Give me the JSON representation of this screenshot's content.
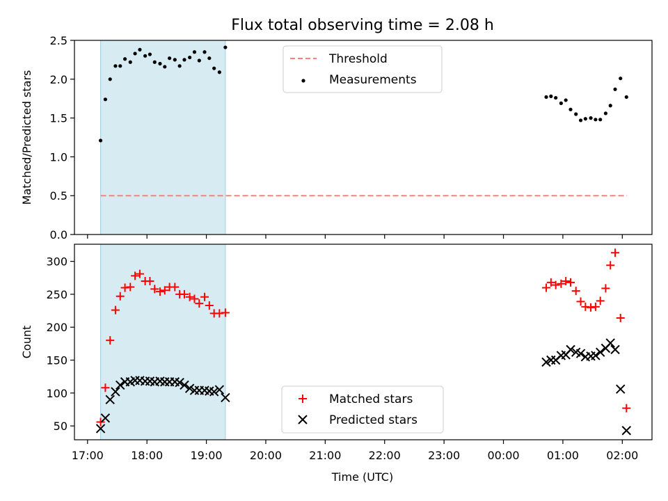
{
  "chart_data": {
    "title": "Flux total observing time = 2.08 h",
    "xlabel": "Time (UTC)",
    "x_tick_labels": [
      "17:00",
      "18:00",
      "19:00",
      "20:00",
      "21:00",
      "22:00",
      "23:00",
      "00:00",
      "01:00",
      "02:00"
    ],
    "x_tick_hours": [
      17,
      18,
      19,
      20,
      21,
      22,
      23,
      24,
      25,
      26
    ],
    "xlim_hours": [
      16.78,
      26.5
    ],
    "shaded_interval_hours": [
      17.22,
      19.32
    ],
    "shade_color": "#add8e6",
    "panels": [
      {
        "type": "scatter",
        "ylabel": "Matched/Predicted stars",
        "ylim": [
          0,
          2.5
        ],
        "y_tick_labels": [
          "0.0",
          "0.5",
          "1.0",
          "1.5",
          "2.0",
          "2.5"
        ],
        "y_tick_values": [
          0,
          0.5,
          1.0,
          1.5,
          2.0,
          2.5
        ],
        "legend": {
          "position": "upper center",
          "entries": [
            "Threshold",
            "Measurements"
          ]
        },
        "threshold": {
          "name": "Threshold",
          "y": 0.5,
          "x_range_hours": [
            17.22,
            26.08
          ],
          "color": "#ff7f7f",
          "style": "dashed"
        },
        "series": [
          {
            "name": "Measurements",
            "marker": "dot",
            "color": "#000000",
            "x_hours": [
              17.22,
              17.3,
              17.38,
              17.47,
              17.55,
              17.63,
              17.72,
              17.8,
              17.88,
              17.97,
              18.05,
              18.13,
              18.22,
              18.3,
              18.38,
              18.47,
              18.55,
              18.63,
              18.72,
              18.8,
              18.88,
              18.97,
              19.05,
              19.13,
              19.22,
              19.32,
              24.72,
              24.8,
              24.88,
              24.97,
              25.05,
              25.13,
              25.22,
              25.3,
              25.38,
              25.47,
              25.55,
              25.63,
              25.72,
              25.8,
              25.88,
              25.97,
              26.07
            ],
            "y": [
              1.21,
              1.74,
              2.0,
              2.17,
              2.17,
              2.26,
              2.22,
              2.33,
              2.38,
              2.3,
              2.32,
              2.22,
              2.2,
              2.16,
              2.27,
              2.25,
              2.17,
              2.25,
              2.28,
              2.35,
              2.24,
              2.35,
              2.27,
              2.14,
              2.09,
              2.41,
              1.77,
              1.78,
              1.76,
              1.69,
              1.73,
              1.61,
              1.55,
              1.47,
              1.49,
              1.5,
              1.48,
              1.48,
              1.56,
              1.66,
              1.87,
              2.01,
              1.77
            ]
          }
        ]
      },
      {
        "type": "scatter",
        "ylabel": "Count",
        "ylim": [
          29,
          326
        ],
        "y_tick_labels": [
          "50",
          "100",
          "150",
          "200",
          "250",
          "300"
        ],
        "y_tick_values": [
          50,
          100,
          150,
          200,
          250,
          300
        ],
        "legend": {
          "position": "lower center",
          "entries": [
            "Matched stars",
            "Predicted stars"
          ]
        },
        "series": [
          {
            "name": "Matched stars",
            "marker": "plus",
            "color": "#ff0000",
            "x_hours": [
              17.22,
              17.3,
              17.38,
              17.47,
              17.55,
              17.63,
              17.72,
              17.8,
              17.88,
              17.97,
              18.05,
              18.13,
              18.22,
              18.3,
              18.38,
              18.47,
              18.55,
              18.63,
              18.72,
              18.8,
              18.88,
              18.97,
              19.05,
              19.13,
              19.22,
              19.32,
              24.72,
              24.8,
              24.88,
              24.97,
              25.05,
              25.13,
              25.22,
              25.3,
              25.38,
              25.47,
              25.55,
              25.63,
              25.72,
              25.8,
              25.88,
              25.97,
              26.07
            ],
            "y": [
              56,
              108,
              180,
              226,
              247,
              260,
              261,
              278,
              281,
              270,
              270,
              258,
              254,
              256,
              261,
              261,
              250,
              250,
              246,
              243,
              236,
              246,
              233,
              221,
              221,
              222,
              260,
              268,
              264,
              266,
              270,
              268,
              255,
              239,
              231,
              230,
              231,
              240,
              259,
              294,
              313,
              214,
              77
            ]
          },
          {
            "name": "Predicted stars",
            "marker": "cross",
            "color": "#000000",
            "x_hours": [
              17.22,
              17.3,
              17.38,
              17.47,
              17.55,
              17.63,
              17.72,
              17.8,
              17.88,
              17.97,
              18.05,
              18.13,
              18.22,
              18.3,
              18.38,
              18.47,
              18.55,
              18.63,
              18.72,
              18.8,
              18.88,
              18.97,
              19.05,
              19.13,
              19.22,
              19.32,
              24.72,
              24.8,
              24.88,
              24.97,
              25.05,
              25.13,
              25.22,
              25.3,
              25.38,
              25.47,
              25.55,
              25.63,
              25.72,
              25.8,
              25.88,
              25.97,
              26.07
            ],
            "y": [
              46,
              62,
              90,
              102,
              112,
              117,
              117,
              119,
              119,
              118,
              118,
              117,
              118,
              117,
              117,
              117,
              116,
              112,
              107,
              104,
              104,
              104,
              103,
              102,
              105,
              93,
              147,
              150,
              150,
              157,
              158,
              166,
              162,
              160,
              155,
              156,
              157,
              162,
              168,
              176,
              166,
              106,
              43
            ]
          }
        ]
      }
    ]
  }
}
